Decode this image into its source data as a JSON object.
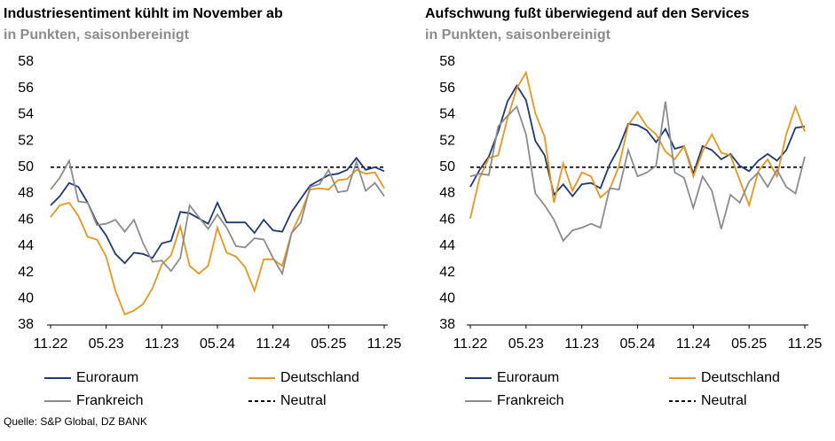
{
  "chart_data": [
    {
      "type": "line",
      "title": "Industriesentiment kühlt im November ab",
      "subtitle": "in Punkten, saisonbereinigt",
      "categories": [
        "11.22",
        null,
        null,
        null,
        null,
        null,
        "05.23",
        null,
        null,
        null,
        null,
        null,
        "11.23",
        null,
        null,
        null,
        null,
        null,
        "05.24",
        null,
        null,
        null,
        null,
        null,
        "11.24",
        null,
        null,
        null,
        null,
        null,
        "05.25",
        null,
        null,
        null,
        null,
        null,
        "11.25"
      ],
      "ylim": [
        38,
        58
      ],
      "yticks": [
        38,
        40,
        42,
        44,
        46,
        48,
        50,
        52,
        54,
        56,
        58
      ],
      "grid": false,
      "series": [
        {
          "name": "Euroraum",
          "color": "#1f3a70",
          "values": [
            47.1,
            47.8,
            48.8,
            48.5,
            47.3,
            45.8,
            44.8,
            43.4,
            42.7,
            43.5,
            43.4,
            43.1,
            44.2,
            44.4,
            46.6,
            46.5,
            46.1,
            45.7,
            47.3,
            45.8,
            45.8,
            45.8,
            45.0,
            46.0,
            45.2,
            45.1,
            46.6,
            47.6,
            48.6,
            49.0,
            49.4,
            49.5,
            49.8,
            50.7,
            49.8,
            50.0,
            49.7
          ]
        },
        {
          "name": "Deutschland",
          "color": "#e8961e",
          "values": [
            46.2,
            47.1,
            47.3,
            46.3,
            44.7,
            44.5,
            43.2,
            40.6,
            38.8,
            39.1,
            39.6,
            40.8,
            42.6,
            43.3,
            45.5,
            42.5,
            41.9,
            42.5,
            45.4,
            43.5,
            43.2,
            42.4,
            40.6,
            43.0,
            43.0,
            42.5,
            45.0,
            46.5,
            48.3,
            48.4,
            48.3,
            49.0,
            49.1,
            49.8,
            49.5,
            49.6,
            48.4
          ]
        },
        {
          "name": "Frankreich",
          "color": "#8c8c8c",
          "values": [
            48.3,
            49.2,
            50.5,
            47.4,
            47.3,
            45.6,
            45.7,
            46.0,
            45.1,
            46.0,
            44.2,
            42.8,
            42.9,
            42.1,
            43.1,
            47.1,
            46.2,
            45.3,
            46.4,
            45.4,
            44.0,
            43.9,
            44.6,
            44.5,
            43.1,
            41.9,
            45.0,
            45.8,
            48.5,
            48.7,
            49.8,
            48.1,
            48.2,
            50.4,
            48.2,
            48.8,
            47.8
          ]
        },
        {
          "name": "Neutral",
          "color": "#000000",
          "dashed": true,
          "values": [
            50,
            50,
            50,
            50,
            50,
            50,
            50,
            50,
            50,
            50,
            50,
            50,
            50,
            50,
            50,
            50,
            50,
            50,
            50,
            50,
            50,
            50,
            50,
            50,
            50,
            50,
            50,
            50,
            50,
            50,
            50,
            50,
            50,
            50,
            50,
            50,
            50
          ]
        }
      ]
    },
    {
      "type": "line",
      "title": "Aufschwung fußt überwiegend auf den Services",
      "subtitle": "in Punkten, saisonbereinigt",
      "categories": [
        "11.22",
        null,
        null,
        null,
        null,
        null,
        "05.23",
        null,
        null,
        null,
        null,
        null,
        "11.23",
        null,
        null,
        null,
        null,
        null,
        "05.24",
        null,
        null,
        null,
        null,
        null,
        "11.24",
        null,
        null,
        null,
        null,
        null,
        "05.25",
        null,
        null,
        null,
        null,
        null,
        "11.25"
      ],
      "ylim": [
        38,
        58
      ],
      "yticks": [
        38,
        40,
        42,
        44,
        46,
        48,
        50,
        52,
        54,
        56,
        58
      ],
      "grid": false,
      "series": [
        {
          "name": "Euroraum",
          "color": "#1f3a70",
          "values": [
            48.5,
            49.8,
            50.8,
            52.7,
            55.0,
            56.2,
            55.1,
            52.0,
            50.9,
            47.9,
            48.7,
            47.8,
            48.7,
            48.8,
            48.4,
            50.2,
            51.5,
            53.3,
            53.2,
            52.8,
            51.9,
            52.9,
            51.4,
            51.6,
            49.5,
            51.6,
            51.3,
            50.6,
            51.0,
            50.1,
            49.7,
            50.5,
            51.0,
            50.5,
            51.3,
            53.0,
            53.1
          ]
        },
        {
          "name": "Deutschland",
          "color": "#e8961e",
          "values": [
            46.1,
            49.2,
            50.7,
            50.9,
            53.7,
            56.0,
            57.2,
            54.1,
            52.3,
            47.3,
            50.3,
            48.2,
            49.6,
            49.3,
            47.7,
            48.3,
            50.1,
            53.2,
            54.2,
            53.1,
            52.5,
            51.2,
            50.6,
            51.6,
            49.3,
            51.2,
            52.5,
            51.1,
            50.9,
            49.0,
            47.1,
            49.7,
            50.6,
            49.3,
            52.5,
            54.6,
            52.7
          ]
        },
        {
          "name": "Frankreich",
          "color": "#8c8c8c",
          "values": [
            49.3,
            49.5,
            49.4,
            53.1,
            53.9,
            54.6,
            52.5,
            48.0,
            47.1,
            46.0,
            44.4,
            45.2,
            45.4,
            45.7,
            45.4,
            48.4,
            48.3,
            51.3,
            49.3,
            49.6,
            50.1,
            55.0,
            49.6,
            49.2,
            46.9,
            49.3,
            48.2,
            45.3,
            47.9,
            47.3,
            48.9,
            49.6,
            48.5,
            49.8,
            48.5,
            48.0,
            50.8
          ]
        },
        {
          "name": "Neutral",
          "color": "#000000",
          "dashed": true,
          "values": [
            50,
            50,
            50,
            50,
            50,
            50,
            50,
            50,
            50,
            50,
            50,
            50,
            50,
            50,
            50,
            50,
            50,
            50,
            50,
            50,
            50,
            50,
            50,
            50,
            50,
            50,
            50,
            50,
            50,
            50,
            50,
            50,
            50,
            50,
            50,
            50,
            50
          ]
        }
      ]
    }
  ],
  "source": "Quelle: S&P Global, DZ BANK"
}
